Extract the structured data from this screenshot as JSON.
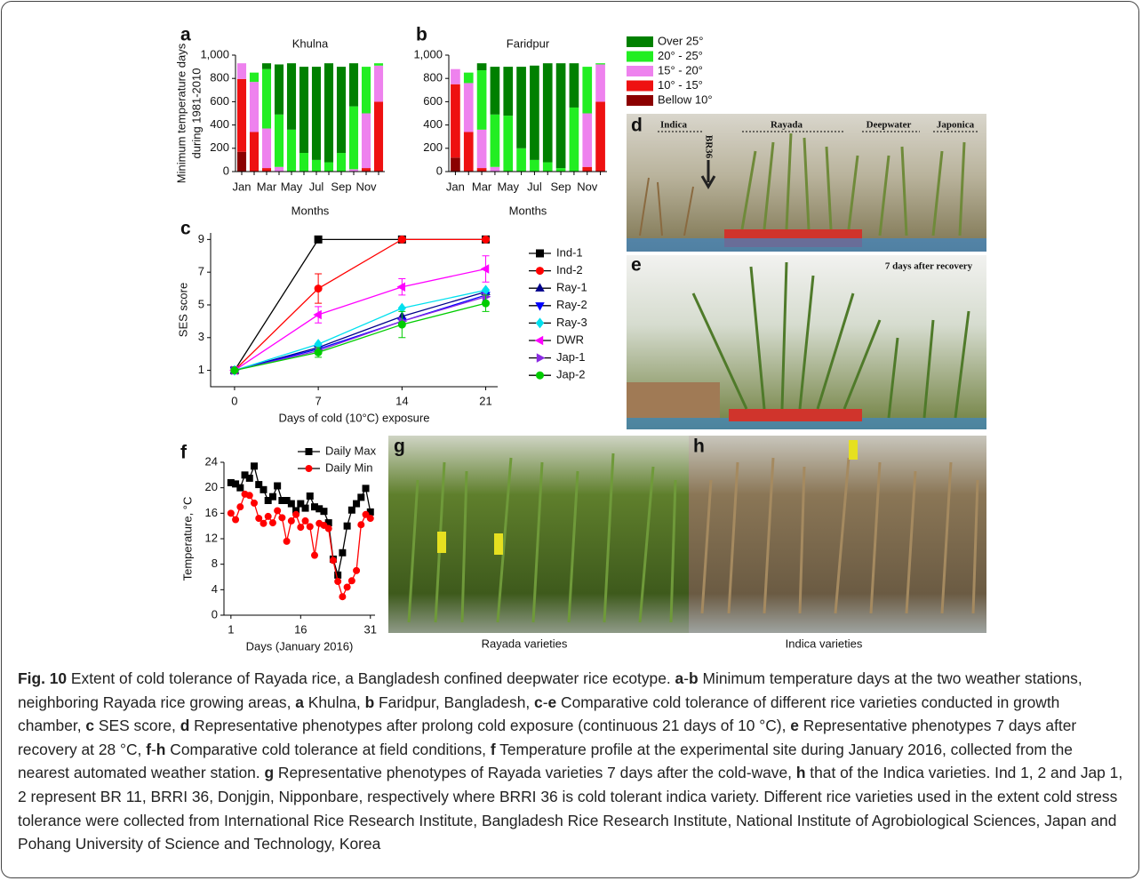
{
  "chart_data": [
    {
      "type": "bar",
      "stacked": true,
      "panel": "a",
      "title": "Khulna",
      "ylabel": [
        "Minimum temperature days",
        "during 1981-2010"
      ],
      "xlabel": "Months",
      "categories": [
        "Jan",
        null,
        "Mar",
        null,
        "May",
        null,
        "Jul",
        null,
        "Sep",
        null,
        "Nov",
        null
      ],
      "ylim": [
        0,
        1000
      ],
      "yticks": [
        0,
        200,
        400,
        600,
        800,
        {
          "value": 1000,
          "label": "1,000"
        }
      ],
      "series": [
        {
          "color": "#008000",
          "values": [
            0,
            0,
            50,
            430,
            570,
            740,
            800,
            850,
            740,
            370,
            0,
            0
          ]
        },
        {
          "color": "#22ee22",
          "values": [
            0,
            80,
            510,
            450,
            360,
            160,
            100,
            80,
            160,
            540,
            400,
            20
          ]
        },
        {
          "color": "#ee82ee",
          "values": [
            135,
            430,
            340,
            40,
            0,
            0,
            0,
            0,
            0,
            20,
            470,
            310
          ]
        },
        {
          "color": "#ee1111",
          "values": [
            625,
            340,
            30,
            0,
            0,
            0,
            0,
            0,
            0,
            0,
            30,
            600
          ]
        },
        {
          "color": "#8b0000",
          "values": [
            170,
            0,
            0,
            0,
            0,
            0,
            0,
            0,
            0,
            0,
            0,
            0
          ]
        }
      ]
    },
    {
      "type": "bar",
      "stacked": true,
      "panel": "b",
      "title": "Faridpur",
      "xlabel": "Months",
      "categories": [
        "Jan",
        null,
        "Mar",
        null,
        "May",
        null,
        "Jul",
        null,
        "Sep",
        null,
        "Nov",
        null
      ],
      "ylim": [
        0,
        1000
      ],
      "yticks": [
        0,
        200,
        400,
        600,
        800,
        {
          "value": 1000,
          "label": "1,000"
        }
      ],
      "legend": "right",
      "series": [
        {
          "name": "Over 25°",
          "color": "#008000",
          "values": [
            0,
            0,
            60,
            410,
            420,
            700,
            810,
            850,
            900,
            380,
            0,
            0
          ]
        },
        {
          "name": "20° - 25°",
          "color": "#22ee22",
          "values": [
            0,
            90,
            510,
            450,
            480,
            200,
            100,
            80,
            30,
            550,
            400,
            10
          ]
        },
        {
          "name": "15° - 20°",
          "color": "#ee82ee",
          "values": [
            130,
            420,
            330,
            40,
            0,
            0,
            0,
            0,
            0,
            0,
            460,
            320
          ]
        },
        {
          "name": "10° - 15°",
          "color": "#ee1111",
          "values": [
            630,
            340,
            30,
            0,
            0,
            0,
            0,
            0,
            0,
            0,
            40,
            600
          ]
        },
        {
          "name": "Bellow 10°",
          "color": "#8b0000",
          "values": [
            120,
            0,
            0,
            0,
            0,
            0,
            0,
            0,
            0,
            0,
            0,
            0
          ]
        }
      ]
    },
    {
      "type": "line",
      "panel": "c",
      "ylabel": "SES score",
      "xlabel": "Days of cold (10°C) exposure",
      "x": [
        0,
        7,
        14,
        21
      ],
      "xlim": [
        -2,
        22
      ],
      "xticks": [
        0,
        7,
        14,
        21
      ],
      "ylim": [
        0,
        9.4
      ],
      "yticks": [
        1,
        3,
        5,
        7,
        9
      ],
      "legend": "right",
      "series": [
        {
          "name": "Ind-1",
          "color": "#000000",
          "marker": "square",
          "values": [
            1,
            9,
            9,
            9
          ]
        },
        {
          "name": "Ind-2",
          "color": "#ff0000",
          "marker": "circle",
          "values": [
            1,
            6.0,
            9,
            9
          ],
          "errors": [
            0,
            0.9,
            0,
            0
          ]
        },
        {
          "name": "Ray-1",
          "color": "#00008b",
          "marker": "triangle-up",
          "values": [
            1,
            2.4,
            4.3,
            5.8
          ]
        },
        {
          "name": "Ray-2",
          "color": "#0000ff",
          "marker": "triangle-down",
          "values": [
            1,
            2.3,
            4.0,
            5.6
          ]
        },
        {
          "name": "Ray-3",
          "color": "#00e0ee",
          "marker": "diamond",
          "values": [
            1,
            2.6,
            4.8,
            5.9
          ]
        },
        {
          "name": "DWR",
          "color": "#ff00ff",
          "marker": "triangle-left",
          "values": [
            1,
            4.4,
            6.1,
            7.2
          ],
          "errors": [
            0,
            0.5,
            0.5,
            0.8
          ]
        },
        {
          "name": "Jap-1",
          "color": "#8a2be2",
          "marker": "triangle-right",
          "values": [
            1,
            2.2,
            4.0,
            5.5
          ]
        },
        {
          "name": "Jap-2",
          "color": "#00cc00",
          "marker": "circle",
          "values": [
            1,
            2.1,
            3.8,
            5.1
          ],
          "errors": [
            0,
            0.3,
            0.8,
            0.5
          ]
        }
      ]
    },
    {
      "type": "line",
      "panel": "f",
      "ylabel": "Temperature, °C",
      "xlabel": "Days (January 2016)",
      "x": [
        1,
        2,
        3,
        4,
        5,
        6,
        7,
        8,
        9,
        10,
        11,
        12,
        13,
        14,
        15,
        16,
        17,
        18,
        19,
        20,
        21,
        22,
        23,
        24,
        25,
        26,
        27,
        28,
        29,
        30,
        31
      ],
      "xlim": [
        -0.5,
        32
      ],
      "xticks": [
        1,
        16,
        31
      ],
      "ylim": [
        0,
        24
      ],
      "yticks": [
        0,
        4,
        8,
        12,
        16,
        20,
        24
      ],
      "legend": "top",
      "series": [
        {
          "name": "Daily Max",
          "color": "#000000",
          "marker": "square",
          "values": [
            20.8,
            20.6,
            20,
            22,
            21.5,
            23.4,
            20.5,
            19.7,
            18,
            18.6,
            20.3,
            18,
            18,
            17.5,
            16.4,
            17.5,
            16.8,
            18.7,
            17,
            16.7,
            16.3,
            14.5,
            8.8,
            6.3,
            9.8,
            14,
            16.5,
            17.5,
            18.5,
            19.9,
            16.2
          ]
        },
        {
          "name": "Daily Min",
          "color": "#ff0000",
          "marker": "circle",
          "values": [
            16,
            15,
            17,
            19,
            18.8,
            17.6,
            15.2,
            14.4,
            15.5,
            14.5,
            16.4,
            15.3,
            11.6,
            14.8,
            15.8,
            13.8,
            14.8,
            13.9,
            9.4,
            14.4,
            14.1,
            13.6,
            8.6,
            5.3,
            2.9,
            4.4,
            5.4,
            7,
            14.2,
            15.8,
            15.2
          ]
        }
      ]
    }
  ],
  "photos": [
    {
      "panel": "d",
      "texts": [
        "Indica",
        "Rayada",
        "Deepwater",
        "Japonica",
        "BR36"
      ]
    },
    {
      "panel": "e",
      "texts": [
        "7 days after recovery"
      ]
    },
    {
      "panel": "g",
      "caption": "Rayada varieties"
    },
    {
      "panel": "h",
      "caption": "Indica varieties"
    }
  ],
  "caption": {
    "runs": [
      {
        "text": "Fig. 10",
        "bold": true
      },
      {
        "text": " Extent of cold tolerance of Rayada rice, a Bangladesh confined deepwater rice ecotype. "
      },
      {
        "text": "a",
        "bold": true
      },
      {
        "text": "-"
      },
      {
        "text": "b",
        "bold": true
      },
      {
        "text": " Minimum temperature days at the two weather stations, neighboring Rayada rice growing areas, "
      },
      {
        "text": "a",
        "bold": true
      },
      {
        "text": " Khulna, "
      },
      {
        "text": "b",
        "bold": true
      },
      {
        "text": " Faridpur, Bangladesh, "
      },
      {
        "text": "c",
        "bold": true
      },
      {
        "text": "-"
      },
      {
        "text": "e",
        "bold": true
      },
      {
        "text": " Comparative cold tolerance of different rice varieties conducted in growth chamber, "
      },
      {
        "text": "c",
        "bold": true
      },
      {
        "text": " SES score, "
      },
      {
        "text": "d",
        "bold": true
      },
      {
        "text": " Representative phenotypes after prolong cold exposure (continuous 21 days of 10 °C), "
      },
      {
        "text": "e",
        "bold": true
      },
      {
        "text": " Representative phenotypes 7 days after recovery at 28 °C, "
      },
      {
        "text": "f",
        "bold": true
      },
      {
        "text": "-"
      },
      {
        "text": "h",
        "bold": true
      },
      {
        "text": " Comparative cold tolerance at field conditions, "
      },
      {
        "text": "f",
        "bold": true
      },
      {
        "text": " Temperature profile at the experimental site during January 2016, collected from the nearest automated weather station. "
      },
      {
        "text": "g",
        "bold": true
      },
      {
        "text": " Representative phenotypes of Rayada varieties 7 days after the cold-wave, "
      },
      {
        "text": "h",
        "bold": true
      },
      {
        "text": " that of the Indica varieties. Ind 1, 2 and Jap 1, 2 represent BR 11, BRRI 36, Donjgin, Nipponbare, respectively where BRRI 36 is cold tolerant indica variety. Different rice varieties used in the extent cold stress tolerance were collected from International Rice Research Institute, Bangladesh Rice Research Institute, National Institute of Agrobiological Sciences, Japan and Pohang University of Science and Technology, Korea"
      }
    ]
  }
}
